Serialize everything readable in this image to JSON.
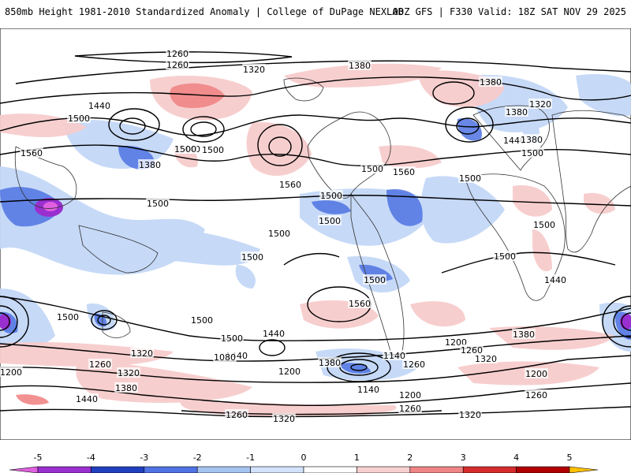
{
  "header": {
    "title": "850mb Height 1981-2010 Standardized Anomaly | College of DuPage NEXLAB",
    "run": "00Z GFS | F330 Valid: 18Z SAT NOV 29 2025"
  },
  "colorbar": {
    "ticks": [
      "-5",
      "-4",
      "-3",
      "-2",
      "-1",
      "0",
      "1",
      "2",
      "3",
      "4",
      "5"
    ],
    "colors": [
      "#e060e0",
      "#9a2fd0",
      "#1f3fbf",
      "#4f73e3",
      "#a6c4f2",
      "#d3e3fb",
      "#ffffff",
      "#f8d0d0",
      "#ef8585",
      "#d42c2c",
      "#b00000",
      "#f08a00",
      "#ffc000"
    ]
  },
  "contour_labels": [
    "1260",
    "1260",
    "1320",
    "1380",
    "1440",
    "1500",
    "1560",
    "1380",
    "1440",
    "1500",
    "1500",
    "1560",
    "1500",
    "1320",
    "1380",
    "1380",
    "1440",
    "1380",
    "1500",
    "1500",
    "1560",
    "1500",
    "1500",
    "1500",
    "1500",
    "1500",
    "1500",
    "1500",
    "1440",
    "1500",
    "1560",
    "1500",
    "1500",
    "1500",
    "1440",
    "1320",
    "1380",
    "1440",
    "1200",
    "1140",
    "1080",
    "1260",
    "1200",
    "1140",
    "1200",
    "1260",
    "1320",
    "1380",
    "1200",
    "1260",
    "1320",
    "1380",
    "1440",
    "1260",
    "1320",
    "1260",
    "1320",
    "1200",
    "1260"
  ]
}
